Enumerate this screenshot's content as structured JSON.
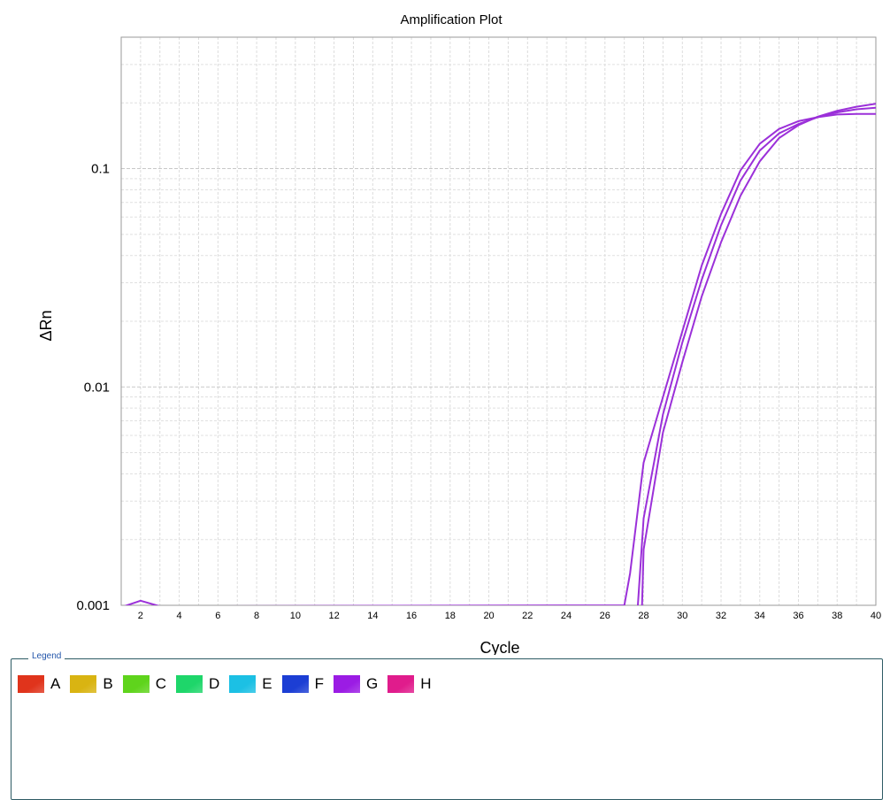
{
  "chart_data": {
    "type": "line",
    "title": "Amplification Plot",
    "xlabel": "Cycle",
    "ylabel": "ΔRn",
    "yscale": "log",
    "xlim": [
      1,
      40
    ],
    "ylim": [
      0.001,
      0.4
    ],
    "xticks": [
      2,
      4,
      6,
      8,
      10,
      12,
      14,
      16,
      18,
      20,
      22,
      24,
      26,
      28,
      30,
      32,
      34,
      36,
      38,
      40
    ],
    "ytick_labels": [
      "0.001",
      "0.01",
      "0.1"
    ],
    "grid": true,
    "series": [
      {
        "color": "#9b30d9",
        "x": [
          1,
          2,
          3,
          27,
          27.3,
          28,
          29,
          30,
          31,
          32,
          33,
          34,
          35,
          36,
          37,
          38,
          39,
          40
        ],
        "y": [
          0.00098,
          0.00105,
          0.00099,
          0.001,
          0.0014,
          0.0045,
          0.009,
          0.018,
          0.036,
          0.062,
          0.098,
          0.13,
          0.152,
          0.165,
          0.172,
          0.177,
          0.178,
          0.178
        ]
      },
      {
        "color": "#9b30d9",
        "x": [
          27.5,
          27.7,
          28,
          29,
          30,
          31,
          32,
          33,
          34,
          35,
          36,
          37,
          38,
          39,
          40
        ],
        "y": [
          0.0008,
          0.001,
          0.0025,
          0.0075,
          0.016,
          0.031,
          0.055,
          0.088,
          0.121,
          0.145,
          0.16,
          0.172,
          0.181,
          0.187,
          0.19
        ]
      },
      {
        "color": "#9b30d9",
        "x": [
          27.9,
          28,
          29,
          30,
          31,
          32,
          33,
          34,
          35,
          36,
          37,
          38,
          39,
          40
        ],
        "y": [
          0.0009,
          0.0018,
          0.0062,
          0.013,
          0.026,
          0.046,
          0.075,
          0.108,
          0.138,
          0.158,
          0.173,
          0.184,
          0.192,
          0.198
        ]
      }
    ]
  },
  "legend": {
    "title": "Legend",
    "items": [
      {
        "label": "A",
        "color": "#e0341c"
      },
      {
        "label": "B",
        "color": "#d9b412"
      },
      {
        "label": "C",
        "color": "#5fd41c"
      },
      {
        "label": "D",
        "color": "#1ed66a"
      },
      {
        "label": "E",
        "color": "#1cc0e4"
      },
      {
        "label": "F",
        "color": "#1c3ed4"
      },
      {
        "label": "G",
        "color": "#9b1ce4"
      },
      {
        "label": "H",
        "color": "#e01c8c"
      }
    ]
  }
}
